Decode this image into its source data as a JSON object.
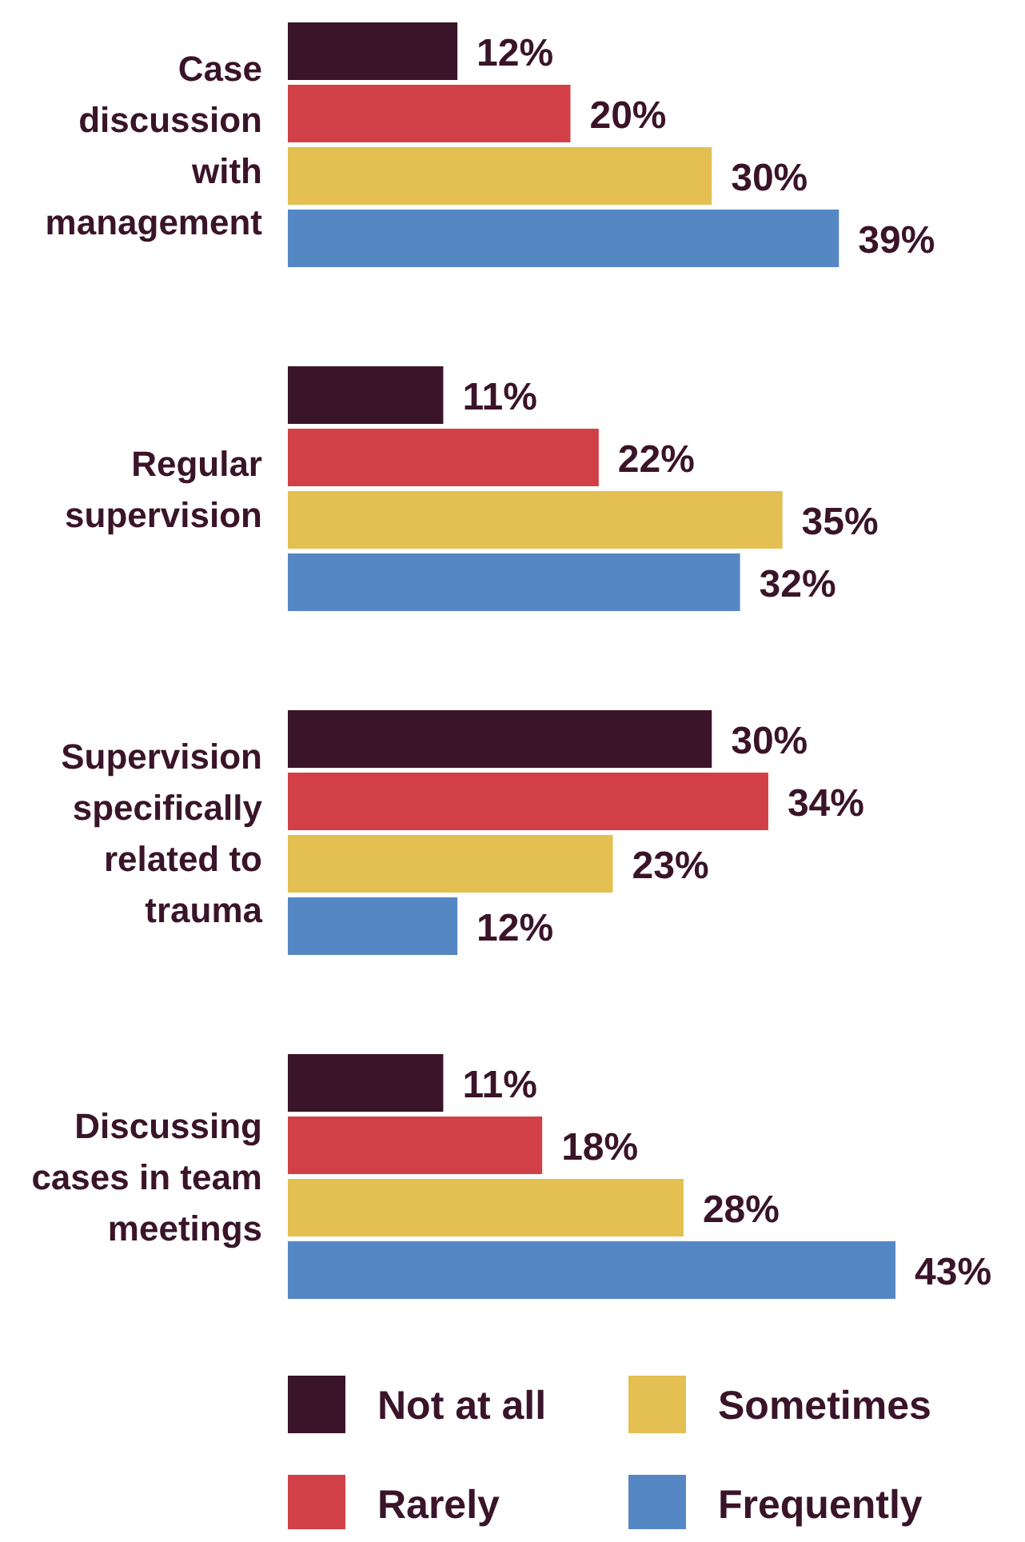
{
  "chart_data": {
    "type": "bar",
    "orientation": "horizontal",
    "categories": [
      "Case discussion with management",
      "Regular supervision",
      "Supervision specifically related to trauma",
      "Discussing cases in team meetings"
    ],
    "series": [
      {
        "name": "Not at all",
        "color": "#3a1429",
        "values": [
          12,
          11,
          30,
          11
        ],
        "value_labels": [
          "12%",
          "11%",
          "30%",
          "11%"
        ]
      },
      {
        "name": "Rarely",
        "color": "#d14047",
        "values": [
          20,
          22,
          34,
          18
        ],
        "value_labels": [
          "20%",
          "22%",
          "34%",
          "18%"
        ]
      },
      {
        "name": "Sometimes",
        "color": "#e4bf52",
        "values": [
          30,
          35,
          23,
          28
        ],
        "value_labels": [
          "30%",
          "35%",
          "23%",
          "28%"
        ]
      },
      {
        "name": "Frequently",
        "color": "#5587c4",
        "values": [
          39,
          32,
          12,
          43
        ],
        "value_labels": [
          "39%",
          "32%",
          "12%",
          "43%"
        ]
      }
    ],
    "legend": "bottom",
    "grid": false
  }
}
